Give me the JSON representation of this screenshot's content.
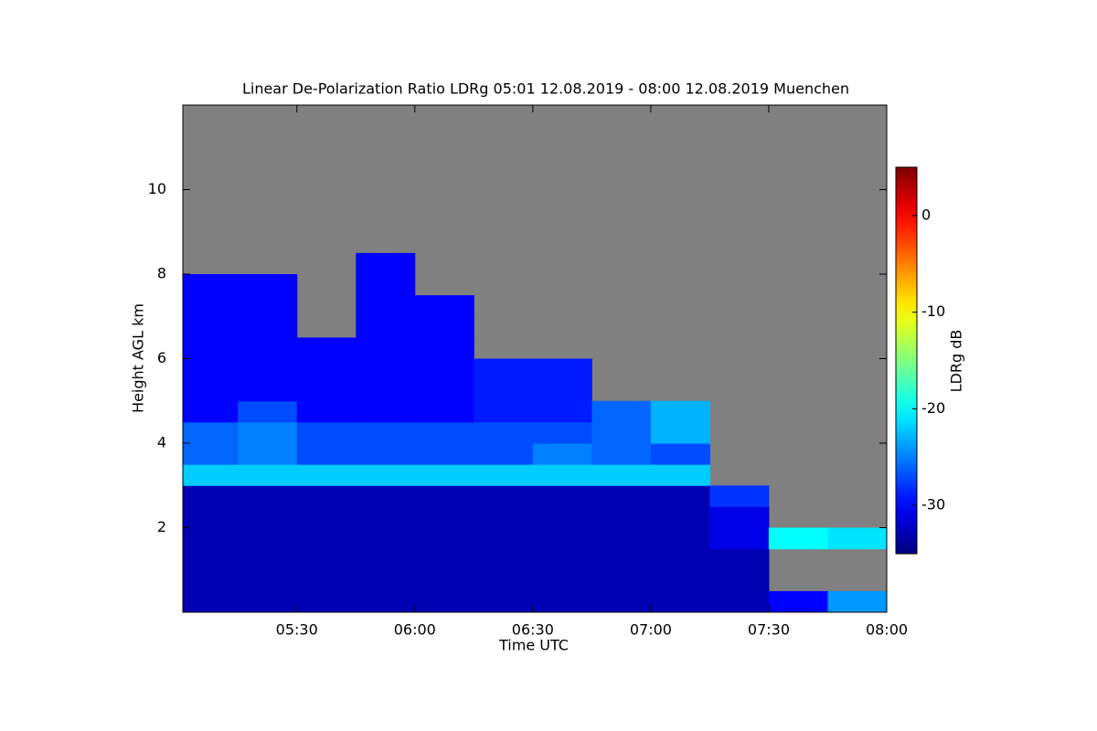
{
  "chart_data": {
    "type": "heatmap",
    "title": "Linear De-Polarization Ratio LDRg   05:01 12.08.2019 - 08:00 12.08.2019 Muenchen",
    "x_label": "Time UTC",
    "y_label": "Height AGL km",
    "colorbar_label": "LDRg dB",
    "colormap": "jet",
    "missing_color": "#808080",
    "x": [
      5.0167,
      5.25,
      5.5,
      5.75,
      6.0,
      6.25,
      6.5,
      6.75,
      7.0,
      7.25,
      7.5,
      7.75,
      8.0
    ],
    "y": [
      0,
      0.5,
      1,
      1.5,
      2,
      2.5,
      3,
      3.5,
      4,
      4.5,
      5,
      5.5,
      6,
      6.5,
      7,
      7.5,
      8,
      8.5,
      9,
      9.5,
      10,
      10.5,
      11,
      11.5,
      12
    ],
    "z": [
      [
        -33,
        -33,
        -33,
        -33,
        -33,
        -33,
        -22,
        -26,
        -26,
        -30,
        -30,
        -30,
        -30,
        -30,
        -30,
        -30,
        null,
        null,
        null,
        null,
        null,
        null,
        null,
        null
      ],
      [
        -33,
        -33,
        -33,
        -33,
        -33,
        -33,
        -22,
        -25,
        -25,
        -27,
        -30,
        -30,
        -30,
        -30,
        -30,
        -30,
        null,
        null,
        null,
        null,
        null,
        null,
        null,
        null
      ],
      [
        -33,
        -33,
        -33,
        -33,
        -33,
        -33,
        -22,
        -27,
        -27,
        -30,
        -30,
        -30,
        -30,
        null,
        null,
        null,
        null,
        null,
        null,
        null,
        null,
        null,
        null,
        null
      ],
      [
        -33,
        -33,
        -33,
        -33,
        -33,
        -33,
        -22,
        -27,
        -27,
        -30,
        -30,
        -30,
        -30,
        -30,
        -30,
        -30,
        -30,
        null,
        null,
        null,
        null,
        null,
        null,
        null
      ],
      [
        -33,
        -33,
        -33,
        -33,
        -33,
        -33,
        -22,
        -27,
        -27,
        -30,
        -30,
        -30,
        -30,
        -30,
        -30,
        null,
        null,
        null,
        null,
        null,
        null,
        null,
        null,
        null
      ],
      [
        -33,
        -33,
        -33,
        -33,
        -33,
        -33,
        -22,
        -27,
        -27,
        -29,
        -29,
        -29,
        null,
        null,
        null,
        null,
        null,
        null,
        null,
        null,
        null,
        null,
        null,
        null
      ],
      [
        -33,
        -33,
        -33,
        -33,
        -33,
        -33,
        -22,
        -25,
        -27,
        -29,
        -29,
        -29,
        null,
        null,
        null,
        null,
        null,
        null,
        null,
        null,
        null,
        null,
        null,
        null
      ],
      [
        -33,
        -33,
        -33,
        -33,
        -33,
        -33,
        -22,
        -26,
        -26,
        -26,
        null,
        null,
        null,
        null,
        null,
        null,
        null,
        null,
        null,
        null,
        null,
        null,
        null,
        null
      ],
      [
        -33,
        -33,
        -33,
        -33,
        -33,
        -33,
        -22,
        -27,
        -23,
        -23,
        null,
        null,
        null,
        null,
        null,
        null,
        null,
        null,
        null,
        null,
        null,
        null,
        null,
        null
      ],
      [
        -33,
        -33,
        -33,
        -31,
        -31,
        -28,
        null,
        null,
        null,
        null,
        null,
        null,
        null,
        null,
        null,
        null,
        null,
        null,
        null,
        null,
        null,
        null,
        null,
        null
      ],
      [
        -30,
        null,
        null,
        -20,
        null,
        null,
        null,
        null,
        null,
        null,
        null,
        null,
        null,
        null,
        null,
        null,
        null,
        null,
        null,
        null,
        null,
        null,
        null,
        null
      ],
      [
        -24,
        null,
        null,
        -21,
        null,
        null,
        null,
        null,
        null,
        null,
        null,
        null,
        null,
        null,
        null,
        null,
        null,
        null,
        null,
        null,
        null,
        null,
        null,
        null
      ]
    ],
    "xlim": [
      5.0167,
      8.0
    ],
    "xticks": [
      {
        "value": 5.5,
        "label": "05:30"
      },
      {
        "value": 6.0,
        "label": "06:00"
      },
      {
        "value": 6.5,
        "label": "06:30"
      },
      {
        "value": 7.0,
        "label": "07:00"
      },
      {
        "value": 7.5,
        "label": "07:30"
      },
      {
        "value": 8.0,
        "label": "08:00"
      }
    ],
    "ylim": [
      0,
      12
    ],
    "yticks": [
      2,
      4,
      6,
      8,
      10
    ],
    "clim": [
      -35,
      5
    ],
    "cticks": [
      0,
      -10,
      -20,
      -30
    ]
  }
}
